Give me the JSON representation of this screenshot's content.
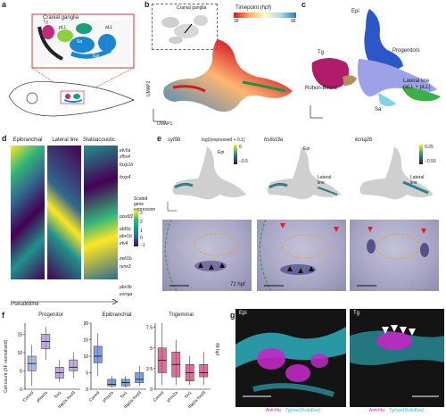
{
  "panels": {
    "a": {
      "letter": "a",
      "title": "Cranial ganglia",
      "labels": {
        "tg": "Tg",
        "pll": "pLL",
        "sa": "Sa",
        "all": "aLL",
        "epi": "Epi"
      }
    },
    "b": {
      "letter": "b",
      "inset_title": "Cranial ganglia",
      "legend_title": "Timepoint (hpf)",
      "legend_min": "18",
      "legend_max": "96",
      "axis_x": "UMAP1",
      "axis_y": "UMAP2"
    },
    "c": {
      "letter": "c",
      "labels": {
        "epi": "Epi",
        "tg": "Tg",
        "progenitors": "Progenitors",
        "rohon": "Rohon-Beard",
        "lateral": "Lateral line",
        "lateral2": "(aLL + pLL)",
        "sa": "Sa"
      }
    },
    "d": {
      "letter": "d",
      "col_headers": [
        "Epibranchial",
        "Lateral line",
        "Statoacoustic"
      ],
      "genes": [
        "etv5a",
        "zfhx4",
        "foxp1b",
        "foxp4",
        "pou6f2",
        "ebf1b",
        "pbx1b",
        "etv4",
        "zeb1b",
        "runx3",
        "pbx3b",
        "esrrga"
      ],
      "colorbar_title": "Scaled gene expression",
      "colorbar_ticks": [
        "3",
        "2",
        "1",
        "0",
        "−1"
      ],
      "x_label": "Pseudotime"
    },
    "e": {
      "letter": "e",
      "genes": [
        "syt9b",
        "hs6st3a",
        "kcnq2b"
      ],
      "scale1_title": "log2(expressed + 0.1)",
      "scale1_ticks": [
        "0",
        "−0.5"
      ],
      "scale3_ticks": [
        "0.25",
        "−0.50"
      ],
      "labels": {
        "epi": "Epi",
        "lateral": "Lateral",
        "line": "line"
      },
      "time": "72 hpf"
    },
    "f": {
      "letter": "f",
      "ylabel": "Cell count (SF normalized)",
      "side_label": "48 hpf",
      "groups": [
        "Control",
        "phox2a",
        "fox1",
        "tfap2a foxd3"
      ]
    },
    "g": {
      "letter": "g",
      "left_tag": "Epi",
      "right_tag": "Tg",
      "left_caption_a": "Anti-Hu",
      "left_caption_b": "Tg(sox10:nlsEos)",
      "right_caption_a": "Anti-Hu",
      "right_caption_b": "Tg(sox10:nlsEos)"
    }
  },
  "chart_data": [
    {
      "type": "box",
      "title": "Progenitor",
      "categories": [
        "Control",
        "phox2a",
        "fox1",
        "tfap2a foxd3"
      ],
      "stats": [
        [
          1,
          5,
          7,
          9,
          12
        ],
        [
          8,
          11,
          13,
          15,
          17
        ],
        [
          2,
          3,
          4.5,
          6,
          8
        ],
        [
          3,
          5,
          6,
          8,
          10
        ]
      ],
      "ylim": [
        0,
        18
      ],
      "yticks": [
        0,
        5,
        10,
        15
      ],
      "colors": [
        "#8aa3d6",
        "#a98fd4",
        "#a98fd4",
        "#a98fd4"
      ]
    },
    {
      "type": "box",
      "title": "Epibranchial",
      "categories": [
        "Control",
        "phox2a",
        "fox1",
        "tfap2a foxd3"
      ],
      "stats": [
        [
          4,
          8,
          10,
          13,
          17
        ],
        [
          0.5,
          1,
          1.5,
          3,
          4
        ],
        [
          0.5,
          1,
          2,
          3,
          4
        ],
        [
          1,
          2,
          3,
          5,
          7
        ]
      ],
      "ylim": [
        0,
        20
      ],
      "yticks": [
        0,
        5,
        10,
        15,
        20
      ],
      "colors": [
        "#4f7fd6",
        "#4f7fd6",
        "#4f7fd6",
        "#4f7fd6"
      ]
    },
    {
      "type": "box",
      "title": "Trigeminal",
      "categories": [
        "Control",
        "phox2a",
        "fox1",
        "tfap2a foxd3"
      ],
      "stats": [
        [
          0.5,
          2,
          3.5,
          5,
          8
        ],
        [
          0.5,
          1.5,
          3,
          4.5,
          6
        ],
        [
          0.5,
          1,
          2,
          3,
          4
        ],
        [
          0.5,
          1.5,
          2,
          3,
          4.5
        ]
      ],
      "ylim": [
        0,
        8
      ],
      "yticks": [
        0,
        2.5,
        5,
        7.5
      ],
      "colors": [
        "#c7417b",
        "#c7417b",
        "#c7417b",
        "#c7417b"
      ]
    }
  ]
}
